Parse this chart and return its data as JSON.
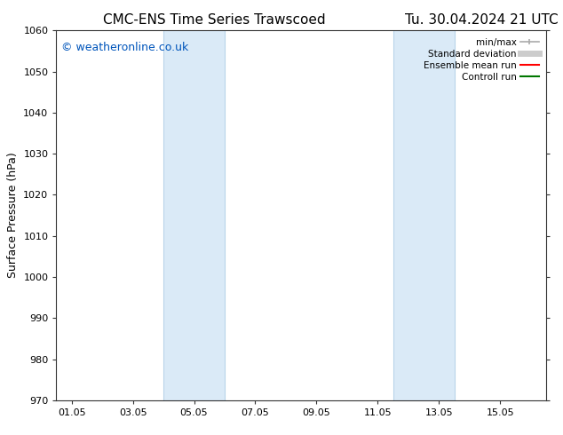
{
  "title_left": "CMC-ENS Time Series Trawscoed",
  "title_right": "Tu. 30.04.2024 21 UTC",
  "ylabel": "Surface Pressure (hPa)",
  "ylim": [
    970,
    1060
  ],
  "yticks": [
    970,
    980,
    990,
    1000,
    1010,
    1020,
    1030,
    1040,
    1050,
    1060
  ],
  "xlim_start": -0.5,
  "xlim_end": 15.5,
  "xtick_labels": [
    "01.05",
    "03.05",
    "05.05",
    "07.05",
    "09.05",
    "11.05",
    "13.05",
    "15.05"
  ],
  "xtick_positions": [
    0,
    2,
    4,
    6,
    8,
    10,
    12,
    14
  ],
  "shaded_bands": [
    {
      "x_start": 3.0,
      "x_end": 5.0,
      "color": "#daeaf7"
    },
    {
      "x_start": 10.5,
      "x_end": 12.5,
      "color": "#daeaf7"
    }
  ],
  "vertical_lines": [
    {
      "x": 3.0,
      "color": "#b8d4ea"
    },
    {
      "x": 5.0,
      "color": "#b8d4ea"
    },
    {
      "x": 10.5,
      "color": "#b8d4ea"
    },
    {
      "x": 12.5,
      "color": "#b8d4ea"
    }
  ],
  "watermark_text": "© weatheronline.co.uk",
  "watermark_color": "#0055bb",
  "watermark_fontsize": 9,
  "legend_items": [
    {
      "label": "min/max",
      "color": "#aaaaaa",
      "lw": 1.2,
      "style": "minmax"
    },
    {
      "label": "Standard deviation",
      "color": "#cccccc",
      "lw": 5,
      "style": "bar"
    },
    {
      "label": "Ensemble mean run",
      "color": "#ff0000",
      "lw": 1.5,
      "style": "line"
    },
    {
      "label": "Controll run",
      "color": "#007700",
      "lw": 1.5,
      "style": "line"
    }
  ],
  "bg_color": "#ffffff",
  "spine_color": "#333333",
  "title_fontsize": 11,
  "label_fontsize": 9,
  "tick_fontsize": 8,
  "legend_fontsize": 7.5
}
